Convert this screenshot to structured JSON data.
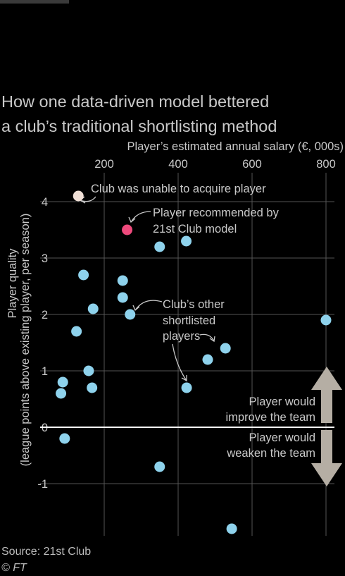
{
  "header": {
    "title_line1": "How one data-driven model bettered",
    "title_line2": "a club’s traditional shortlisting method"
  },
  "chart_data": {
    "type": "scatter",
    "xlabel": "Player’s estimated annual salary (€, 000s)",
    "ylabel_line1": "Player quality",
    "ylabel_line2": "(league points above existing player, per season)",
    "x_ticks": [
      200,
      400,
      600,
      800
    ],
    "y_ticks": [
      4,
      3,
      2,
      1,
      0,
      -1
    ],
    "y_tick_labels": [
      "4",
      "3",
      "2",
      "1",
      "0",
      "-1"
    ],
    "xlim": [
      57,
      835
    ],
    "ylim": [
      -1.8,
      4.35
    ],
    "grid": true,
    "series": [
      {
        "color": "#f0e0d6",
        "points": [
          {
            "x": 130,
            "y": 4.1
          }
        ]
      },
      {
        "color": "#ee4a7c",
        "points": [
          {
            "x": 262,
            "y": 3.5
          }
        ]
      },
      {
        "color": "#8ed2ec",
        "points": [
          {
            "x": 350,
            "y": 3.2
          },
          {
            "x": 422,
            "y": 3.3
          },
          {
            "x": 144,
            "y": 2.7
          },
          {
            "x": 250,
            "y": 2.6
          },
          {
            "x": 250,
            "y": 2.3
          },
          {
            "x": 170,
            "y": 2.1
          },
          {
            "x": 270,
            "y": 2.0
          },
          {
            "x": 125,
            "y": 1.7
          },
          {
            "x": 158,
            "y": 1.0
          },
          {
            "x": 167,
            "y": 0.7
          },
          {
            "x": 88,
            "y": 0.8
          },
          {
            "x": 83,
            "y": 0.6
          },
          {
            "x": 93,
            "y": -0.2
          },
          {
            "x": 350,
            "y": -0.7
          },
          {
            "x": 423,
            "y": 0.7
          },
          {
            "x": 480,
            "y": 1.2
          },
          {
            "x": 528,
            "y": 1.4
          },
          {
            "x": 800,
            "y": 1.9
          },
          {
            "x": 545,
            "y": -1.8
          }
        ]
      }
    ],
    "annotations": {
      "unable": "Club was unable to acquire player",
      "recommended_line1": "Player recommended by",
      "recommended_line2": "21st Club model",
      "others_line1": "Club’s other",
      "others_line2": "shortlisted",
      "others_line3": "players",
      "improve_line1": "Player would",
      "improve_line2": "improve the team",
      "weaken_line1": "Player would",
      "weaken_line2": "weaken the team"
    }
  },
  "colors": {
    "background": "#000000",
    "grid": "#555555",
    "zero_line": "#ffffff",
    "text_muted": "#c9c9c9",
    "arrow": "#b5aea4"
  },
  "footer": {
    "source": "Source: 21st Club",
    "credit": "© FT"
  }
}
